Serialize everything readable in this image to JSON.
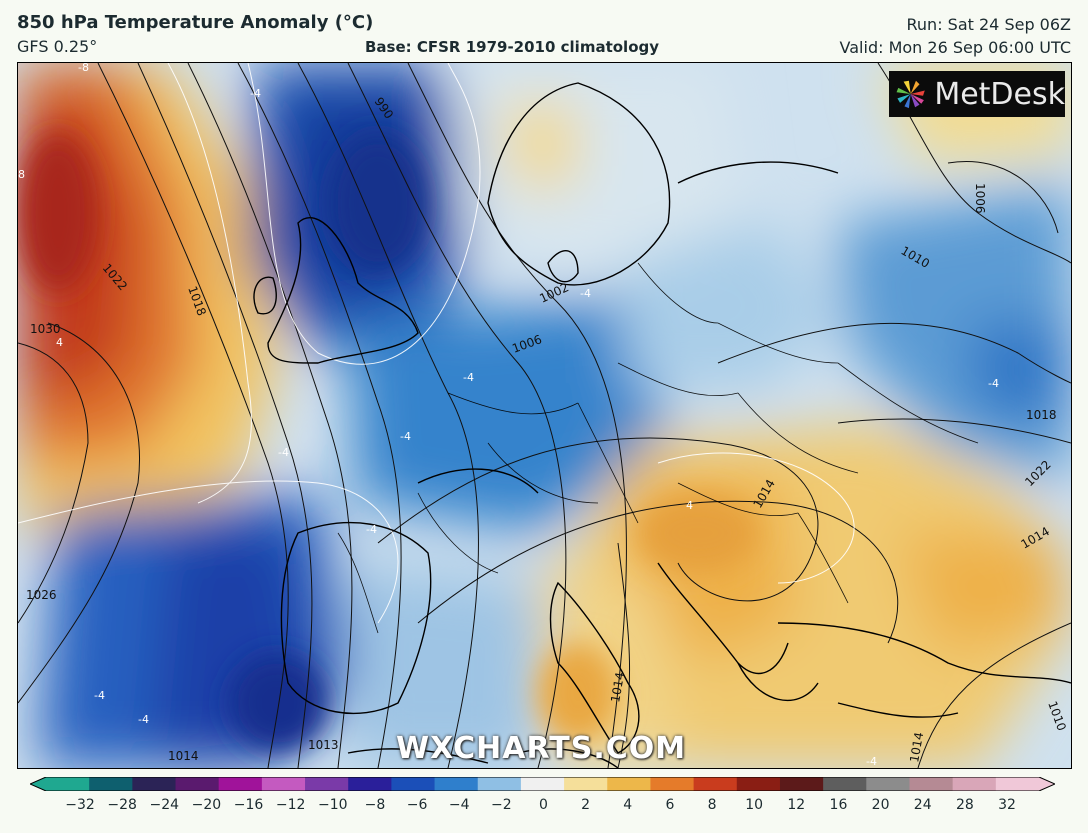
{
  "header": {
    "title": "850 hPa Temperature Anomaly (°C)",
    "model": "GFS 0.25°",
    "base": "Base: CFSR 1979-2010 climatology",
    "run": "Run: Sat 24 Sep 06Z",
    "valid": "Valid: Mon 26 Sep 06:00 UTC"
  },
  "logo": {
    "text": "MetDesk",
    "icon": "metdesk-pinwheel-icon"
  },
  "watermark": "WXCHARTS.COM",
  "isobar_labels": [
    "1030",
    "1022",
    "1018",
    "990",
    "1006",
    "1002",
    "1010",
    "1006",
    "1018",
    "1014",
    "1022",
    "1026",
    "1014",
    "1014",
    "1010",
    "1014",
    "1013",
    "1014"
  ],
  "anomaly_labels": [
    "-8",
    "-4",
    "4",
    "-4",
    "-4",
    "-4",
    "-4",
    "-4",
    "-4",
    "-4",
    "4",
    "-4",
    "8",
    "-4"
  ],
  "colorbar": {
    "ticks": [
      "-32",
      "-28",
      "-24",
      "-20",
      "-16",
      "-12",
      "-10",
      "-8",
      "-6",
      "-4",
      "-2",
      "0",
      "2",
      "4",
      "6",
      "8",
      "10",
      "12",
      "16",
      "20",
      "24",
      "28",
      "32"
    ],
    "colors": [
      "#1fa890",
      "#0e5f6e",
      "#2b2356",
      "#5a1a6e",
      "#a0139a",
      "#c45ac0",
      "#7a3aa8",
      "#2a1f9a",
      "#1b4fb8",
      "#2f7fcc",
      "#8fbfe4",
      "#f0f0f0",
      "#f5df9a",
      "#edb74a",
      "#e57b2a",
      "#c93c1e",
      "#8a1e14",
      "#5c1a1a",
      "#5e5e5e",
      "#8c8c8c",
      "#b58a94",
      "#d9a6b8",
      "#f0c8d8"
    ]
  }
}
